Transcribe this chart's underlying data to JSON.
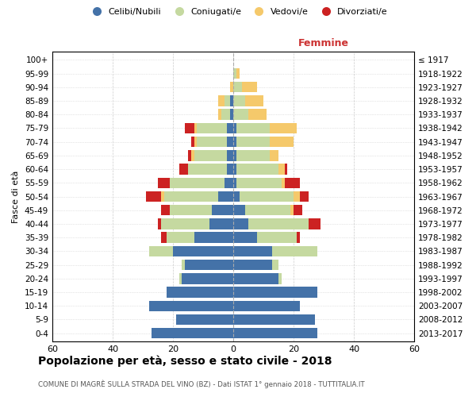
{
  "age_groups": [
    "0-4",
    "5-9",
    "10-14",
    "15-19",
    "20-24",
    "25-29",
    "30-34",
    "35-39",
    "40-44",
    "45-49",
    "50-54",
    "55-59",
    "60-64",
    "65-69",
    "70-74",
    "75-79",
    "80-84",
    "85-89",
    "90-94",
    "95-99",
    "100+"
  ],
  "birth_years": [
    "2013-2017",
    "2008-2012",
    "2003-2007",
    "1998-2002",
    "1993-1997",
    "1988-1992",
    "1983-1987",
    "1978-1982",
    "1973-1977",
    "1968-1972",
    "1963-1967",
    "1958-1962",
    "1953-1957",
    "1948-1952",
    "1943-1947",
    "1938-1942",
    "1933-1937",
    "1928-1932",
    "1923-1927",
    "1918-1922",
    "≤ 1917"
  ],
  "colors": {
    "celibi": "#4472a8",
    "coniugati": "#c5d9a0",
    "vedovi": "#f5c96b",
    "divorziati": "#cc2222"
  },
  "males": {
    "celibi": [
      27,
      19,
      28,
      22,
      17,
      16,
      20,
      13,
      8,
      7,
      5,
      3,
      2,
      2,
      2,
      2,
      1,
      1,
      0,
      0,
      0
    ],
    "coniugati": [
      0,
      0,
      0,
      0,
      1,
      1,
      8,
      9,
      16,
      14,
      18,
      18,
      13,
      11,
      10,
      10,
      3,
      2,
      0,
      0,
      0
    ],
    "vedovi": [
      0,
      0,
      0,
      0,
      0,
      0,
      0,
      0,
      0,
      0,
      1,
      0,
      0,
      1,
      1,
      1,
      1,
      2,
      1,
      0,
      0
    ],
    "divorziati": [
      0,
      0,
      0,
      0,
      0,
      0,
      0,
      2,
      1,
      3,
      5,
      4,
      3,
      1,
      1,
      3,
      0,
      0,
      0,
      0,
      0
    ]
  },
  "females": {
    "celibi": [
      28,
      27,
      22,
      28,
      15,
      13,
      13,
      8,
      5,
      4,
      2,
      1,
      1,
      1,
      1,
      1,
      0,
      0,
      0,
      0,
      0
    ],
    "coniugati": [
      0,
      0,
      0,
      0,
      1,
      2,
      15,
      13,
      20,
      15,
      18,
      15,
      14,
      11,
      11,
      11,
      5,
      4,
      3,
      1,
      0
    ],
    "vedovi": [
      0,
      0,
      0,
      0,
      0,
      0,
      0,
      0,
      0,
      1,
      2,
      1,
      2,
      3,
      8,
      9,
      6,
      6,
      5,
      1,
      0
    ],
    "divorziati": [
      0,
      0,
      0,
      0,
      0,
      0,
      0,
      1,
      4,
      3,
      3,
      5,
      1,
      0,
      0,
      0,
      0,
      0,
      0,
      0,
      0
    ]
  },
  "xlim": 60,
  "title_main": "Popolazione per età, sesso e stato civile - 2018",
  "title_sub": "COMUNE DI MAGRÈ SULLA STRADA DEL VINO (BZ) - Dati ISTAT 1° gennaio 2018 - TUTTITALIA.IT",
  "legend_labels": [
    "Celibi/Nubili",
    "Coniugati/e",
    "Vedovi/e",
    "Divorziati/e"
  ],
  "ylabel_left": "Fasce di età",
  "femmine_label": "Femmine",
  "background_color": "#ffffff",
  "grid_color": "#cccccc"
}
